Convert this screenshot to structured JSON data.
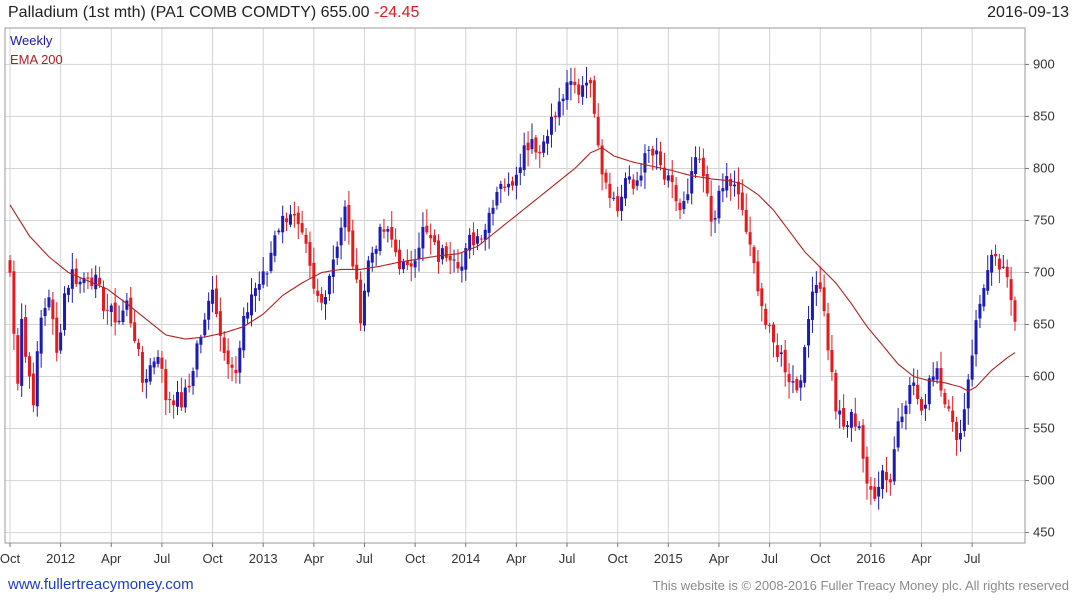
{
  "header": {
    "title": "Palladium (1st mth)  (PA1 COMB COMDTY) 655.00",
    "change": "-24.45",
    "date": "2016-09-13"
  },
  "legend": {
    "series1": "Weekly",
    "series2": "EMA 200"
  },
  "colors": {
    "up": "#1c1cb4",
    "down": "#e41a1c",
    "ema": "#b22222",
    "grid": "#d4d4d4"
  },
  "footer": {
    "left": "www.fullertreacymoney.com",
    "right": "This website is © 2008-2016 Fuller Treacy Money plc. All rights reserved"
  },
  "chart_data": {
    "type": "candlestick",
    "title": "Palladium (1st mth)  (PA1 COMB COMDTY)",
    "frequency": "Weekly",
    "ylim": [
      440,
      935
    ],
    "yticks": [
      450,
      500,
      550,
      600,
      650,
      700,
      750,
      800,
      850,
      900
    ],
    "xticks": [
      {
        "label": "Oct",
        "week": 0
      },
      {
        "label": "2012",
        "week": 13
      },
      {
        "label": "Apr",
        "week": 26
      },
      {
        "label": "Jul",
        "week": 39
      },
      {
        "label": "Oct",
        "week": 52
      },
      {
        "label": "2013",
        "week": 65
      },
      {
        "label": "Apr",
        "week": 78
      },
      {
        "label": "Jul",
        "week": 91
      },
      {
        "label": "Oct",
        "week": 104
      },
      {
        "label": "2014",
        "week": 117
      },
      {
        "label": "Apr",
        "week": 130
      },
      {
        "label": "Jul",
        "week": 143
      },
      {
        "label": "Oct",
        "week": 156
      },
      {
        "label": "2015",
        "week": 169
      },
      {
        "label": "Apr",
        "week": 182
      },
      {
        "label": "Jul",
        "week": 195
      },
      {
        "label": "Oct",
        "week": 208
      },
      {
        "label": "2016",
        "week": 221
      },
      {
        "label": "Apr",
        "week": 234
      },
      {
        "label": "Jul",
        "week": 247
      }
    ],
    "total_weeks": 259,
    "close_anchors": [
      [
        0,
        700
      ],
      [
        1,
        640
      ],
      [
        2,
        600
      ],
      [
        3,
        660
      ],
      [
        4,
        620
      ],
      [
        6,
        580
      ],
      [
        8,
        655
      ],
      [
        10,
        680
      ],
      [
        12,
        620
      ],
      [
        14,
        680
      ],
      [
        16,
        700
      ],
      [
        18,
        690
      ],
      [
        20,
        700
      ],
      [
        22,
        690
      ],
      [
        24,
        670
      ],
      [
        26,
        660
      ],
      [
        28,
        655
      ],
      [
        30,
        670
      ],
      [
        32,
        640
      ],
      [
        34,
        595
      ],
      [
        36,
        610
      ],
      [
        38,
        625
      ],
      [
        40,
        580
      ],
      [
        42,
        580
      ],
      [
        44,
        575
      ],
      [
        46,
        590
      ],
      [
        48,
        630
      ],
      [
        50,
        650
      ],
      [
        52,
        690
      ],
      [
        54,
        640
      ],
      [
        56,
        620
      ],
      [
        58,
        600
      ],
      [
        60,
        650
      ],
      [
        62,
        680
      ],
      [
        64,
        690
      ],
      [
        66,
        700
      ],
      [
        68,
        740
      ],
      [
        70,
        750
      ],
      [
        72,
        760
      ],
      [
        74,
        740
      ],
      [
        76,
        720
      ],
      [
        78,
        680
      ],
      [
        80,
        670
      ],
      [
        82,
        700
      ],
      [
        84,
        730
      ],
      [
        86,
        760
      ],
      [
        88,
        710
      ],
      [
        90,
        660
      ],
      [
        92,
        710
      ],
      [
        94,
        730
      ],
      [
        96,
        740
      ],
      [
        98,
        730
      ],
      [
        100,
        710
      ],
      [
        102,
        700
      ],
      [
        104,
        720
      ],
      [
        106,
        740
      ],
      [
        108,
        730
      ],
      [
        110,
        715
      ],
      [
        112,
        720
      ],
      [
        114,
        720
      ],
      [
        116,
        705
      ],
      [
        118,
        730
      ],
      [
        120,
        735
      ],
      [
        122,
        745
      ],
      [
        124,
        770
      ],
      [
        126,
        790
      ],
      [
        128,
        780
      ],
      [
        130,
        800
      ],
      [
        132,
        820
      ],
      [
        134,
        830
      ],
      [
        136,
        815
      ],
      [
        138,
        840
      ],
      [
        140,
        850
      ],
      [
        142,
        870
      ],
      [
        144,
        880
      ],
      [
        146,
        875
      ],
      [
        148,
        890
      ],
      [
        150,
        860
      ],
      [
        152,
        800
      ],
      [
        154,
        780
      ],
      [
        156,
        760
      ],
      [
        158,
        790
      ],
      [
        160,
        780
      ],
      [
        162,
        800
      ],
      [
        164,
        815
      ],
      [
        166,
        810
      ],
      [
        168,
        790
      ],
      [
        170,
        780
      ],
      [
        172,
        760
      ],
      [
        174,
        770
      ],
      [
        176,
        810
      ],
      [
        178,
        790
      ],
      [
        180,
        750
      ],
      [
        182,
        770
      ],
      [
        184,
        790
      ],
      [
        186,
        780
      ],
      [
        188,
        760
      ],
      [
        190,
        720
      ],
      [
        192,
        690
      ],
      [
        194,
        650
      ],
      [
        196,
        630
      ],
      [
        198,
        620
      ],
      [
        200,
        600
      ],
      [
        202,
        590
      ],
      [
        204,
        620
      ],
      [
        206,
        690
      ],
      [
        208,
        690
      ],
      [
        210,
        630
      ],
      [
        212,
        570
      ],
      [
        214,
        550
      ],
      [
        216,
        560
      ],
      [
        218,
        555
      ],
      [
        220,
        490
      ],
      [
        222,
        490
      ],
      [
        224,
        510
      ],
      [
        226,
        500
      ],
      [
        228,
        560
      ],
      [
        230,
        580
      ],
      [
        232,
        595
      ],
      [
        234,
        560
      ],
      [
        236,
        600
      ],
      [
        238,
        610
      ],
      [
        240,
        580
      ],
      [
        242,
        550
      ],
      [
        244,
        545
      ],
      [
        246,
        600
      ],
      [
        248,
        650
      ],
      [
        250,
        690
      ],
      [
        252,
        710
      ],
      [
        254,
        705
      ],
      [
        256,
        690
      ],
      [
        258,
        660
      ]
    ],
    "ema_anchors": [
      [
        0,
        765
      ],
      [
        5,
        735
      ],
      [
        10,
        715
      ],
      [
        15,
        700
      ],
      [
        20,
        692
      ],
      [
        25,
        684
      ],
      [
        30,
        670
      ],
      [
        35,
        655
      ],
      [
        40,
        640
      ],
      [
        45,
        636
      ],
      [
        50,
        638
      ],
      [
        55,
        642
      ],
      [
        60,
        648
      ],
      [
        65,
        660
      ],
      [
        70,
        678
      ],
      [
        75,
        690
      ],
      [
        80,
        700
      ],
      [
        85,
        703
      ],
      [
        90,
        703
      ],
      [
        95,
        706
      ],
      [
        100,
        710
      ],
      [
        105,
        713
      ],
      [
        110,
        716
      ],
      [
        115,
        718
      ],
      [
        120,
        725
      ],
      [
        125,
        740
      ],
      [
        130,
        755
      ],
      [
        135,
        770
      ],
      [
        140,
        785
      ],
      [
        145,
        800
      ],
      [
        149,
        815
      ],
      [
        152,
        820
      ],
      [
        155,
        812
      ],
      [
        160,
        806
      ],
      [
        165,
        802
      ],
      [
        170,
        798
      ],
      [
        175,
        793
      ],
      [
        180,
        790
      ],
      [
        185,
        788
      ],
      [
        188,
        785
      ],
      [
        192,
        775
      ],
      [
        196,
        760
      ],
      [
        200,
        740
      ],
      [
        204,
        720
      ],
      [
        208,
        705
      ],
      [
        212,
        690
      ],
      [
        216,
        670
      ],
      [
        220,
        648
      ],
      [
        224,
        630
      ],
      [
        228,
        612
      ],
      [
        232,
        600
      ],
      [
        236,
        596
      ],
      [
        240,
        594
      ],
      [
        244,
        590
      ],
      [
        246,
        586
      ],
      [
        248,
        590
      ],
      [
        252,
        606
      ],
      [
        256,
        618
      ],
      [
        258,
        623
      ]
    ]
  }
}
